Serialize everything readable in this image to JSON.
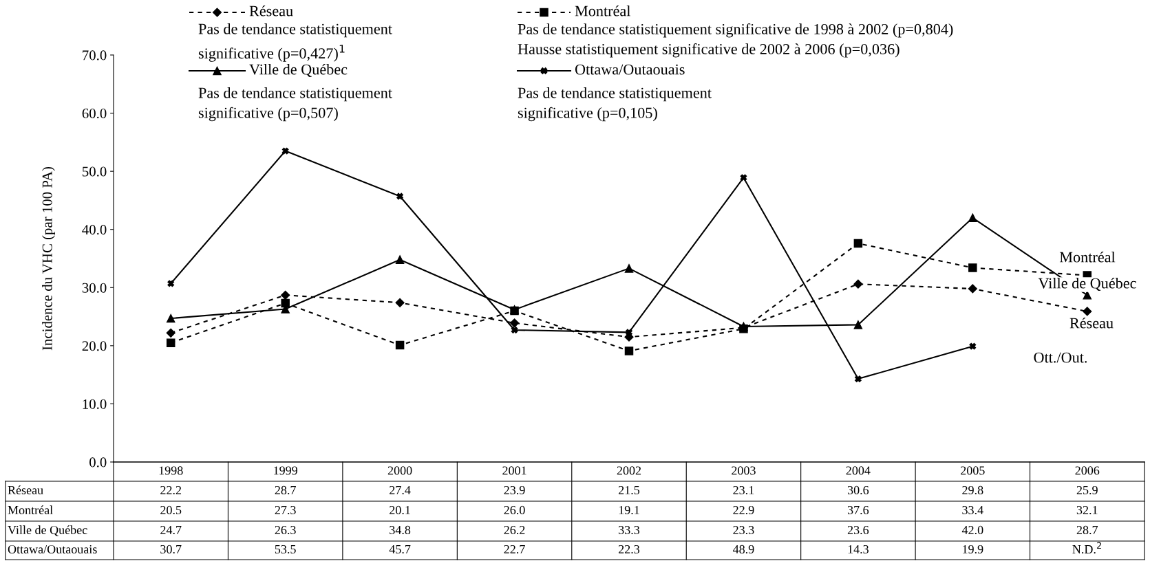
{
  "chart_data": {
    "type": "line",
    "ylabel": "Incidence du VHC (par 100 PA)",
    "categories": [
      "1998",
      "1999",
      "2000",
      "2001",
      "2002",
      "2003",
      "2004",
      "2005",
      "2006"
    ],
    "ylim": [
      0,
      70
    ],
    "yticks": [
      {
        "value": 0,
        "label": "0.0"
      },
      {
        "value": 10,
        "label": "10.0"
      },
      {
        "value": 20,
        "label": "20.0"
      },
      {
        "value": 30,
        "label": "30.0"
      },
      {
        "value": 40,
        "label": "40.0"
      },
      {
        "value": 50,
        "label": "50.0"
      },
      {
        "value": 60,
        "label": "60.0"
      },
      {
        "value": 70,
        "label": "70.0"
      }
    ],
    "grid": false,
    "legend": "top",
    "series": [
      {
        "name": "Réseau",
        "color": "#000000",
        "marker": "diamond",
        "line_style": "dashed",
        "values": [
          22.2,
          28.7,
          27.4,
          23.9,
          21.5,
          23.1,
          30.6,
          29.8,
          25.9
        ],
        "value_labels": [
          "22.2",
          "28.7",
          "27.4",
          "23.9",
          "21.5",
          "23.1",
          "30.6",
          "29.8",
          "25.9"
        ]
      },
      {
        "name": "Montréal",
        "color": "#000000",
        "marker": "square",
        "line_style": "dashed",
        "values": [
          20.5,
          27.3,
          20.1,
          26.0,
          19.1,
          22.9,
          37.6,
          33.4,
          32.1
        ],
        "value_labels": [
          "20.5",
          "27.3",
          "20.1",
          "26.0",
          "19.1",
          "22.9",
          "37.6",
          "33.4",
          "32.1"
        ]
      },
      {
        "name": "Ville de Québec",
        "color": "#000000",
        "marker": "triangle",
        "line_style": "solid",
        "values": [
          24.7,
          26.3,
          34.8,
          26.2,
          33.3,
          23.3,
          23.6,
          42.0,
          28.7
        ],
        "value_labels": [
          "24.7",
          "26.3",
          "34.8",
          "26.2",
          "33.3",
          "23.3",
          "23.6",
          "42.0",
          "28.7"
        ]
      },
      {
        "name": "Ottawa/Outaouais",
        "color": "#000000",
        "marker": "cross",
        "line_style": "solid",
        "values": [
          30.7,
          53.5,
          45.7,
          22.7,
          22.3,
          48.9,
          14.3,
          19.9,
          null
        ],
        "value_labels": [
          "30.7",
          "53.5",
          "45.7",
          "22.7",
          "22.3",
          "48.9",
          "14.3",
          "19.9",
          "N.D.$^{2}$"
        ]
      }
    ],
    "annotations": [
      "Pas de tendance statistiquement\nsignificative (p=0,427)$^{1}$",
      "Pas de tendance statistiquement significative de 1998 à 2002 (p=0,804)\nHausse statistiquement significative de 2002 à 2006 (p=0,036)",
      "Pas de tendance statistiquement\nsignificative (p=0,507)",
      "Pas de tendance statistiquement\nsignificative (p=0,105)",
      "Montréal",
      "Ville de Québec",
      "Réseau",
      "Ott./Out."
    ]
  }
}
